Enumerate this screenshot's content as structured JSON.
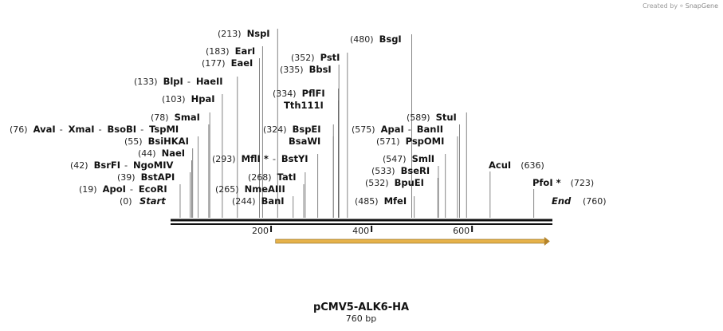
{
  "credit": {
    "prefix": "Created by",
    "brand": "SnapGene"
  },
  "map": {
    "title": "pCMV5-ALK6-HA",
    "length_label": "760 bp",
    "length": 760,
    "start_label": "Start",
    "end_label": "End",
    "start_pos": "(0)",
    "end_pos": "(760)",
    "ticks": [
      {
        "bp": 200,
        "label": "200"
      },
      {
        "bp": 400,
        "label": "400"
      },
      {
        "bp": 600,
        "label": "600"
      }
    ],
    "feature": {
      "start": 209,
      "end": 755,
      "color": "#e6b24a"
    }
  },
  "labels": [
    {
      "id": "nspi",
      "side": "left",
      "parts": [
        {
          "p": "(213)",
          "n": "NspI",
          "c": 213
        }
      ]
    },
    {
      "id": "eari",
      "side": "left",
      "parts": [
        {
          "p": "(183)",
          "n": "EarI",
          "c": 183
        }
      ]
    },
    {
      "id": "eaei",
      "side": "left",
      "parts": [
        {
          "p": "(177)",
          "n": "EaeI",
          "c": 177
        }
      ]
    },
    {
      "id": "blpi",
      "side": "left",
      "parts": [
        {
          "p": "(133)",
          "n": "BlpI",
          "c": 133
        },
        {
          "n": "HaeII",
          "c": 133
        }
      ]
    },
    {
      "id": "hpai",
      "side": "left",
      "parts": [
        {
          "p": "(103)",
          "n": "HpaI",
          "c": 103
        }
      ]
    },
    {
      "id": "smai",
      "side": "left",
      "parts": [
        {
          "p": "(78)",
          "n": "SmaI",
          "c": 78
        }
      ]
    },
    {
      "id": "avai",
      "side": "left",
      "parts": [
        {
          "p": "(76)",
          "n": "AvaI",
          "c": 76
        },
        {
          "n": "XmaI",
          "c": 76
        },
        {
          "n": "BsoBI",
          "c": 76
        },
        {
          "n": "TspMI",
          "c": 76
        }
      ]
    },
    {
      "id": "bsihkai",
      "side": "left",
      "parts": [
        {
          "p": "(55)",
          "n": "BsiHKAI",
          "c": 55
        }
      ]
    },
    {
      "id": "naei",
      "side": "left",
      "parts": [
        {
          "p": "(44)",
          "n": "NaeI",
          "c": 44
        }
      ]
    },
    {
      "id": "bsrfi",
      "side": "left",
      "parts": [
        {
          "p": "(42)",
          "n": "BsrFI",
          "c": 42
        },
        {
          "n": "NgoMIV",
          "c": 42
        }
      ]
    },
    {
      "id": "bstapi",
      "side": "left",
      "parts": [
        {
          "p": "(39)",
          "n": "BstAPI",
          "c": 39
        }
      ]
    },
    {
      "id": "apoi",
      "side": "left",
      "parts": [
        {
          "p": "(19)",
          "n": "ApoI",
          "c": 19
        },
        {
          "n": "EcoRI",
          "c": 19
        }
      ]
    },
    {
      "id": "mfli",
      "side": "left",
      "parts": [
        {
          "p": "(293)",
          "n": "MflI *",
          "c": 293
        },
        {
          "n": "BstYI",
          "c": 293
        }
      ]
    },
    {
      "id": "tati",
      "side": "left",
      "parts": [
        {
          "p": "(268)",
          "n": "TatI",
          "c": 268
        }
      ]
    },
    {
      "id": "nmeaiii",
      "side": "left",
      "parts": [
        {
          "p": "(265)",
          "n": "NmeAIII",
          "c": 265
        }
      ]
    },
    {
      "id": "bani",
      "side": "left",
      "parts": [
        {
          "p": "(244)",
          "n": "BanI",
          "c": 244
        }
      ]
    },
    {
      "id": "psti",
      "side": "left",
      "parts": [
        {
          "p": "(352)",
          "n": "PstI",
          "c": 352
        }
      ]
    },
    {
      "id": "bbsi",
      "side": "left",
      "parts": [
        {
          "p": "(335)",
          "n": "BbsI",
          "c": 335
        }
      ]
    },
    {
      "id": "pflfi",
      "side": "left",
      "parts": [
        {
          "p": "(334)",
          "n": "PflFI",
          "c": 334
        }
      ]
    },
    {
      "id": "tth111i",
      "side": "left",
      "parts": [
        {
          "n": "Tth111I",
          "c": 334
        }
      ]
    },
    {
      "id": "bspei",
      "side": "left",
      "parts": [
        {
          "p": "(324)",
          "n": "BspEI",
          "c": 324
        }
      ]
    },
    {
      "id": "bsawi",
      "side": "left",
      "parts": [
        {
          "n": "BsaWI",
          "c": 324
        }
      ]
    },
    {
      "id": "bsgi",
      "side": "left",
      "parts": [
        {
          "p": "(480)",
          "n": "BsgI",
          "c": 480
        }
      ]
    },
    {
      "id": "stui",
      "side": "left",
      "parts": [
        {
          "p": "(589)",
          "n": "StuI",
          "c": 589
        }
      ]
    },
    {
      "id": "apai",
      "side": "left",
      "parts": [
        {
          "p": "(575)",
          "n": "ApaI",
          "c": 575
        },
        {
          "n": "BanII",
          "c": 575
        }
      ]
    },
    {
      "id": "pspomi",
      "side": "left",
      "parts": [
        {
          "p": "(571)",
          "n": "PspOMI",
          "c": 571
        }
      ]
    },
    {
      "id": "smli",
      "side": "left",
      "parts": [
        {
          "p": "(547)",
          "n": "SmlI",
          "c": 547
        }
      ]
    },
    {
      "id": "bseri",
      "side": "left",
      "parts": [
        {
          "p": "(533)",
          "n": "BseRI",
          "c": 533
        }
      ]
    },
    {
      "id": "bpuei",
      "side": "left",
      "parts": [
        {
          "p": "(532)",
          "n": "BpuEI",
          "c": 532
        }
      ]
    },
    {
      "id": "mfei",
      "side": "left",
      "parts": [
        {
          "p": "(485)",
          "n": "MfeI",
          "c": 485
        }
      ]
    },
    {
      "id": "acui",
      "side": "right",
      "parts": [
        {
          "n": "AcuI",
          "c": 636,
          "p": "(636)"
        }
      ]
    },
    {
      "id": "pfoi",
      "side": "right",
      "parts": [
        {
          "n": "PfoI *",
          "c": 723,
          "p": "(723)"
        }
      ]
    }
  ]
}
